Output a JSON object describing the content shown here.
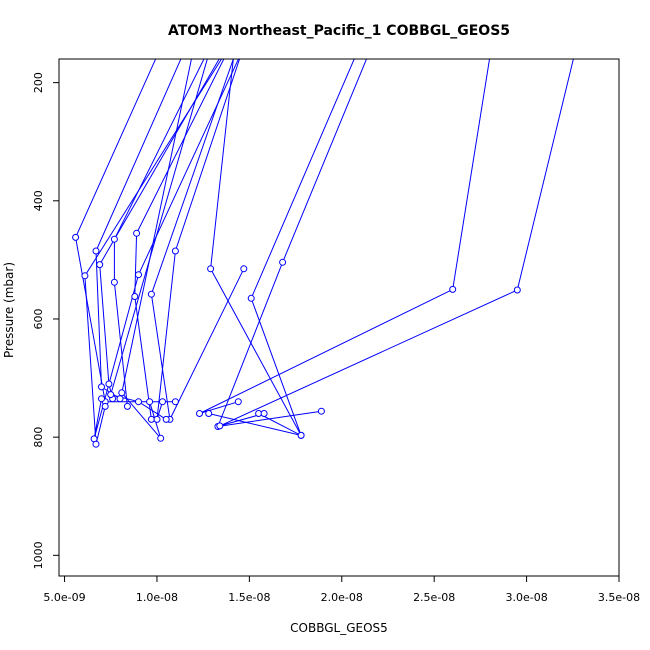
{
  "chart_data": {
    "type": "line",
    "title": "ATOM3 Northeast_Pacific_1 COBBGL_GEOS5",
    "xlabel": "COBBGL_GEOS5",
    "ylabel": "Pressure (mbar)",
    "xlim": [
      4.7e-09,
      3.5e-08
    ],
    "ylim": [
      1035,
      160
    ],
    "y_inverted": true,
    "grid": false,
    "x_ticks": [
      {
        "value": 5e-09,
        "label": "5.0e-09"
      },
      {
        "value": 1e-08,
        "label": "1.0e-08"
      },
      {
        "value": 1.5e-08,
        "label": "1.5e-08"
      },
      {
        "value": 2e-08,
        "label": "2.0e-08"
      },
      {
        "value": 2.5e-08,
        "label": "2.5e-08"
      },
      {
        "value": 3e-08,
        "label": "3.0e-08"
      },
      {
        "value": 3.5e-08,
        "label": "3.5e-08"
      }
    ],
    "y_ticks": [
      {
        "value": 200,
        "label": "200"
      },
      {
        "value": 400,
        "label": "400"
      },
      {
        "value": 600,
        "label": "600"
      },
      {
        "value": 800,
        "label": "800"
      },
      {
        "value": 1000,
        "label": "1000"
      }
    ],
    "series_color": "#0000ff",
    "series": [
      {
        "points": [
          [
            1.05e-08,
            120
          ],
          [
            5.6e-09,
            462
          ],
          [
            7.2e-09,
            740
          ],
          [
            1.1e-08,
            740
          ]
        ]
      },
      {
        "points": [
          [
            1.2e-08,
            110
          ],
          [
            6.7e-09,
            485
          ],
          [
            7e-09,
            715
          ],
          [
            8e-09,
            735
          ]
        ]
      },
      {
        "points": [
          [
            1.35e-08,
            100
          ],
          [
            7.7e-09,
            465
          ],
          [
            7.7e-09,
            538
          ],
          [
            8.4e-09,
            748
          ]
        ]
      },
      {
        "points": [
          [
            1.42e-08,
            115
          ],
          [
            6.9e-09,
            508
          ],
          [
            7.4e-09,
            710
          ],
          [
            7.6e-09,
            735
          ]
        ]
      },
      {
        "points": [
          [
            1.45e-08,
            105
          ],
          [
            8.9e-09,
            455
          ],
          [
            8.8e-09,
            562
          ],
          [
            9.7e-09,
            770
          ]
        ]
      },
      {
        "points": [
          [
            1.5e-08,
            110
          ],
          [
            1.1e-08,
            485
          ],
          [
            1e-08,
            770
          ],
          [
            1.03e-08,
            740
          ]
        ]
      },
      {
        "points": [
          [
            1.5e-08,
            120
          ],
          [
            9e-09,
            525
          ],
          [
            6.6e-09,
            803
          ],
          [
            7e-09,
            735
          ]
        ]
      },
      {
        "points": [
          [
            1.48e-08,
            100
          ],
          [
            9.7e-09,
            558
          ],
          [
            1.07e-08,
            770
          ],
          [
            1.47e-08,
            515
          ]
        ]
      },
      {
        "points": [
          [
            1.42e-08,
            140
          ],
          [
            1.29e-08,
            515
          ],
          [
            1.78e-08,
            797
          ],
          [
            1.28e-08,
            760
          ]
        ]
      },
      {
        "points": [
          [
            1.45e-08,
            110
          ],
          [
            6.1e-09,
            527
          ],
          [
            6.7e-09,
            812
          ],
          [
            7.2e-09,
            748
          ]
        ]
      },
      {
        "points": [
          [
            1.3e-08,
            130
          ],
          [
            7.5e-09,
            728
          ],
          [
            9e-09,
            740
          ],
          [
            1.05e-08,
            770
          ]
        ]
      },
      {
        "points": [
          [
            1.2e-08,
            140
          ],
          [
            8.1e-09,
            725
          ],
          [
            1.02e-08,
            802
          ],
          [
            9.6e-09,
            740
          ]
        ]
      },
      {
        "points": [
          [
            2.15e-08,
            100
          ],
          [
            1.51e-08,
            565
          ],
          [
            1.78e-08,
            797
          ],
          [
            1.55e-08,
            760
          ]
        ]
      },
      {
        "points": [
          [
            2.2e-08,
            110
          ],
          [
            1.68e-08,
            504
          ],
          [
            1.33e-08,
            782
          ],
          [
            1.89e-08,
            756
          ]
        ]
      },
      {
        "points": [
          [
            2.82e-08,
            120
          ],
          [
            2.6e-08,
            550
          ],
          [
            1.23e-08,
            760
          ],
          [
            1.44e-08,
            740
          ]
        ]
      },
      {
        "points": [
          [
            3.3e-08,
            100
          ],
          [
            2.95e-08,
            551
          ],
          [
            1.34e-08,
            781
          ],
          [
            1.58e-08,
            760
          ]
        ]
      }
    ]
  }
}
